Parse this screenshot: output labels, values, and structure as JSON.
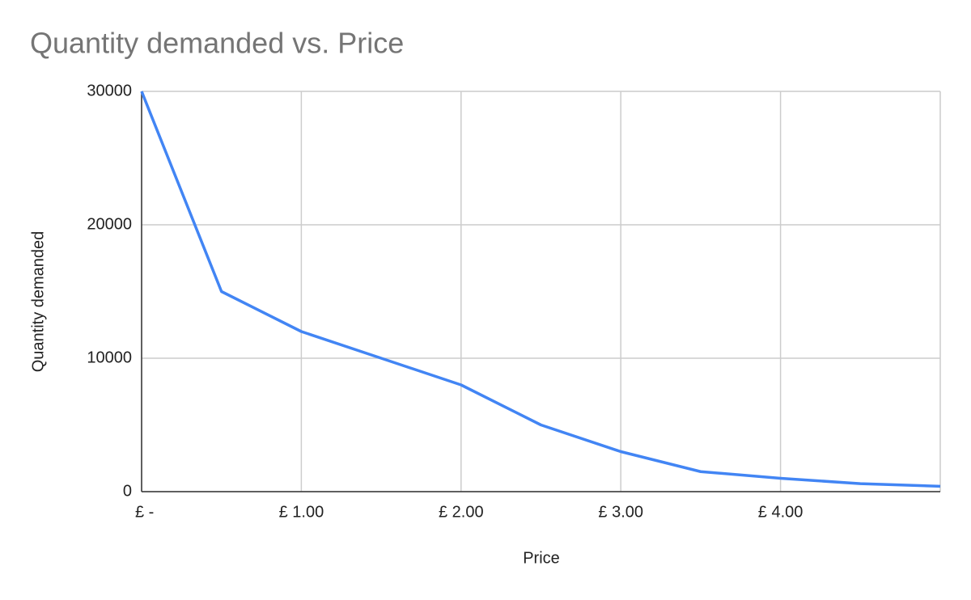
{
  "chart_data": {
    "type": "line",
    "title": "Quantity demanded vs. Price",
    "x_label": "Price",
    "y_label": "Quantity demanded",
    "x": [
      0,
      0.5,
      1,
      1.5,
      2,
      2.5,
      3,
      3.5,
      4,
      4.5,
      5
    ],
    "series": [
      {
        "name": "Quantity demanded",
        "color": "#4285f4",
        "values": [
          30000,
          15000,
          12000,
          10000,
          8000,
          5000,
          3000,
          1500,
          1000,
          600,
          400
        ]
      }
    ],
    "xlim": [
      0,
      5
    ],
    "xticks": [
      {
        "value": 0,
        "label": "£ -"
      },
      {
        "value": 1,
        "label": "£ 1.00"
      },
      {
        "value": 2,
        "label": "£ 2.00"
      },
      {
        "value": 3,
        "label": "£ 3.00"
      },
      {
        "value": 4,
        "label": "£ 4.00"
      }
    ],
    "ylim": [
      0,
      30000
    ],
    "yticks": [
      0,
      10000,
      20000,
      30000
    ],
    "grid": true
  }
}
